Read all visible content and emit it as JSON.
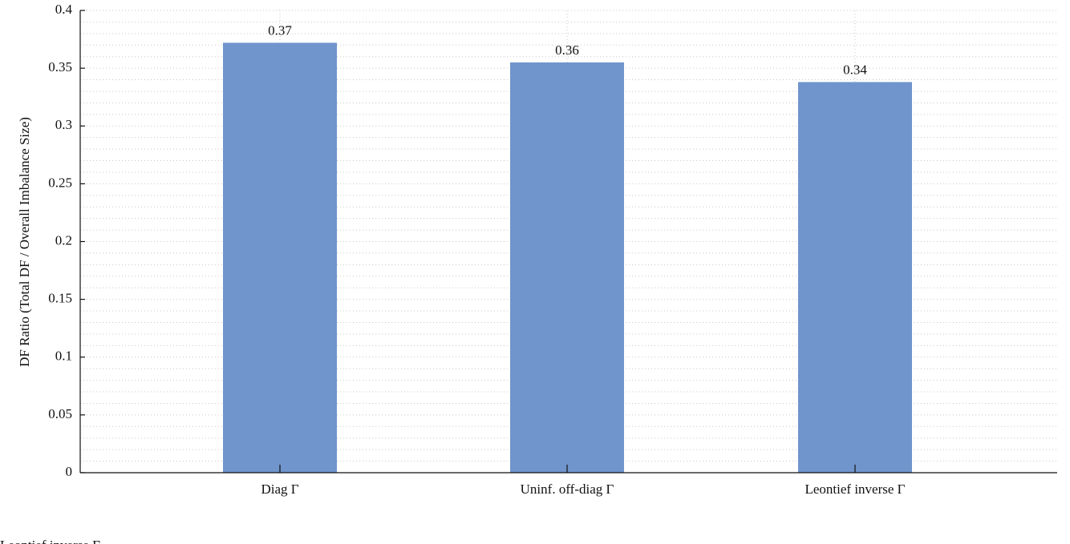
{
  "chart_data": {
    "type": "bar",
    "ylabel": "DF Ratio (Total DF / Overall Imbalance Size)",
    "categories": [
      "Diag Γ",
      "Uninf. off-diag Γ",
      "Leontief inverse Γ"
    ],
    "values": [
      0.372,
      0.355,
      0.338
    ],
    "value_labels": [
      "0.37",
      "0.36",
      "0.34"
    ],
    "color": "#7095cc",
    "ylim": [
      0,
      0.4
    ],
    "yticks": [
      0,
      0.05,
      0.1,
      0.15,
      0.2,
      0.25,
      0.3,
      0.35,
      0.4
    ],
    "minor_yticks": [
      0.01,
      0.02,
      0.03,
      0.04,
      0.06,
      0.07,
      0.08,
      0.09,
      0.11,
      0.12,
      0.13,
      0.14,
      0.16,
      0.17,
      0.18,
      0.19,
      0.21,
      0.22,
      0.23,
      0.24,
      0.26,
      0.27,
      0.28,
      0.29,
      0.31,
      0.32,
      0.33,
      0.34,
      0.36,
      0.37,
      0.38,
      0.39
    ],
    "grid": true,
    "caption": "Leontief inverse Γ"
  }
}
